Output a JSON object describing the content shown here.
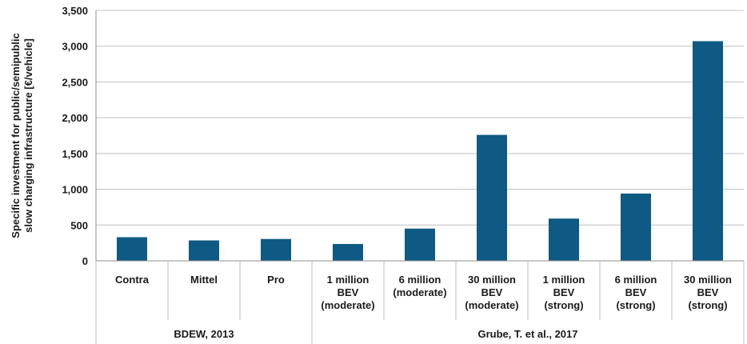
{
  "chart_data": {
    "type": "bar",
    "ylabel": [
      "Specific investment for public/semipublic",
      "slow charging infrastructure [€/vehicle]"
    ],
    "ylim": [
      0,
      3500
    ],
    "yticks": [
      0,
      500,
      1000,
      1500,
      2000,
      2500,
      3000,
      3500
    ],
    "ytick_labels": [
      "0",
      "500",
      "1,000",
      "1,500",
      "2,000",
      "2,500",
      "3,000",
      "3,500"
    ],
    "grid": true,
    "categories": [
      [
        "Contra"
      ],
      [
        "Mittel"
      ],
      [
        "Pro"
      ],
      [
        "1 million",
        "BEV",
        "(moderate)"
      ],
      [
        "6 million",
        "(moderate)"
      ],
      [
        "30 million",
        "BEV",
        "(moderate)"
      ],
      [
        "1 million",
        "BEV",
        "(strong)"
      ],
      [
        "6 million",
        "BEV",
        "(strong)"
      ],
      [
        "30 million",
        "BEV",
        "(strong)"
      ]
    ],
    "values": [
      330,
      285,
      305,
      235,
      450,
      1760,
      590,
      940,
      3070
    ],
    "groups": [
      {
        "label": "BDEW, 2013",
        "count": 3
      },
      {
        "label": "Grube, T. et al., 2017",
        "count": 6
      }
    ],
    "colors": {
      "bar": "#0f5a84"
    }
  }
}
